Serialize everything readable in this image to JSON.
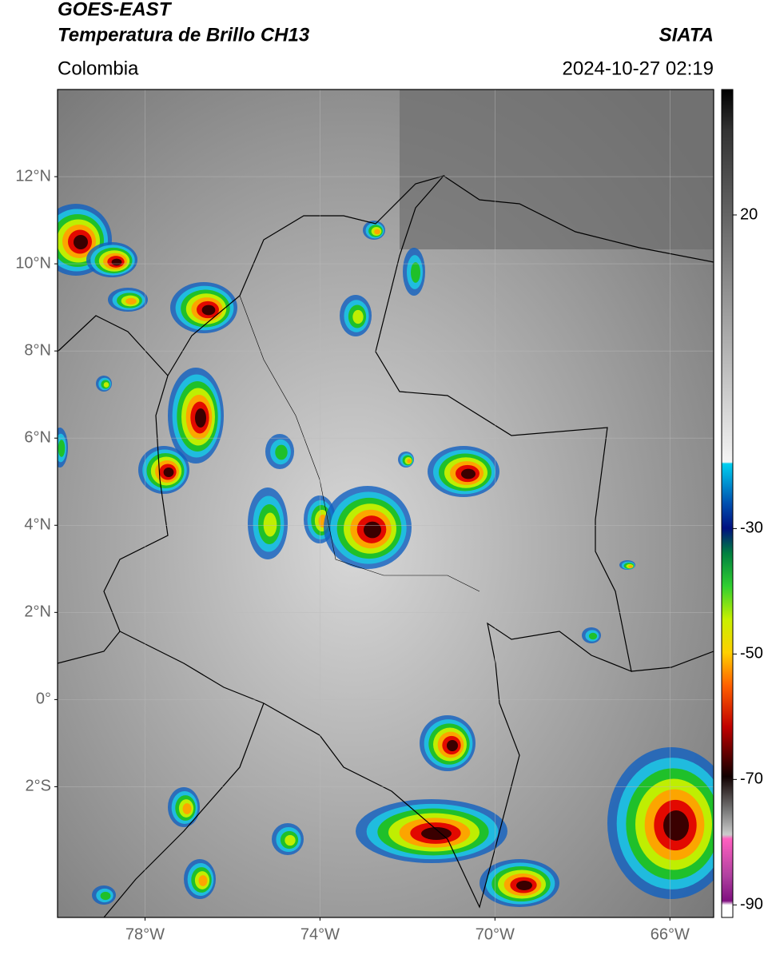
{
  "header": {
    "title": "GOES-EAST",
    "subtitle": "Temperatura de Brillo CH13",
    "source": "SIATA",
    "region": "Colombia",
    "timestamp": "2024-10-27 02:19"
  },
  "map": {
    "latlim": [
      -5,
      14
    ],
    "lonlim": [
      -80,
      -65
    ],
    "latticks": [
      {
        "value": 12,
        "label": "12°N"
      },
      {
        "value": 10,
        "label": "10°N"
      },
      {
        "value": 8,
        "label": "8°N"
      },
      {
        "value": 6,
        "label": "6°N"
      },
      {
        "value": 4,
        "label": "4°N"
      },
      {
        "value": 2,
        "label": "2°N"
      },
      {
        "value": 0,
        "label": "0°"
      },
      {
        "value": -2,
        "label": "2°S"
      }
    ],
    "lonticks": [
      {
        "value": -78,
        "label": "78°W"
      },
      {
        "value": -74,
        "label": "74°W"
      },
      {
        "value": -70,
        "label": "70°W"
      },
      {
        "value": -66,
        "label": "66°W"
      }
    ],
    "grid": true
  },
  "colorbar": {
    "lim": [
      -92,
      40
    ],
    "ticks": [
      20,
      -30,
      -50,
      -70,
      -90
    ]
  }
}
